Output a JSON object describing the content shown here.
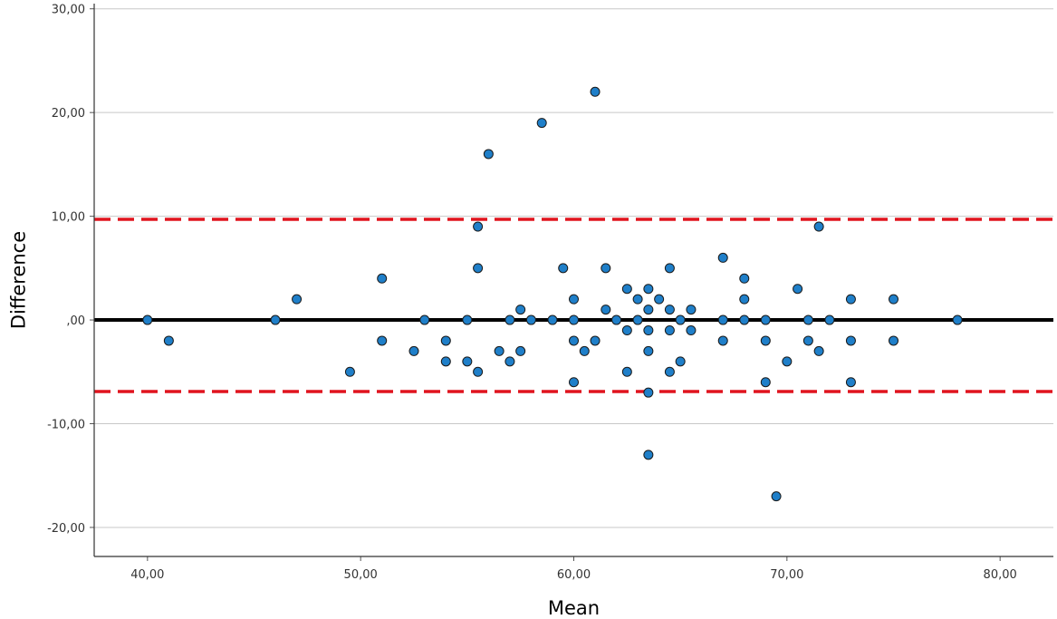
{
  "chart_data": {
    "type": "scatter",
    "title": "",
    "xlabel": "Mean",
    "ylabel": "Difference",
    "xlim": [
      37.5,
      82.5
    ],
    "ylim": [
      -22.8,
      30.5
    ],
    "grid": "horizontal",
    "x_ticks": [
      {
        "value": 40,
        "label": "40,00"
      },
      {
        "value": 50,
        "label": "50,00"
      },
      {
        "value": 60,
        "label": "60,00"
      },
      {
        "value": 70,
        "label": "70,00"
      },
      {
        "value": 80,
        "label": "80,00"
      }
    ],
    "y_ticks": [
      {
        "value": 30,
        "label": "30,00"
      },
      {
        "value": 20,
        "label": "20,00"
      },
      {
        "value": 10,
        "label": "10,00"
      },
      {
        "value": 0,
        "label": ",00"
      },
      {
        "value": -10,
        "label": "-10,00"
      },
      {
        "value": -20,
        "label": "-20,00"
      }
    ],
    "reference_lines": {
      "mean_difference": 0,
      "upper_limit": 9.7,
      "lower_limit": -6.9
    },
    "colors": {
      "points": "#1f7fc9",
      "point_edge": "#1a1a1a",
      "mean_line": "#000000",
      "limit_lines": "#e0141e",
      "grid": "#c8c8c8"
    },
    "points": [
      {
        "x": 40,
        "y": 0
      },
      {
        "x": 41,
        "y": -2
      },
      {
        "x": 46,
        "y": 0
      },
      {
        "x": 47,
        "y": 2
      },
      {
        "x": 49.5,
        "y": -5
      },
      {
        "x": 51,
        "y": 4
      },
      {
        "x": 51,
        "y": -2
      },
      {
        "x": 52.5,
        "y": -3
      },
      {
        "x": 53,
        "y": 0
      },
      {
        "x": 54,
        "y": -2
      },
      {
        "x": 54,
        "y": -4
      },
      {
        "x": 55,
        "y": 0
      },
      {
        "x": 55,
        "y": -4
      },
      {
        "x": 55.5,
        "y": 9
      },
      {
        "x": 55.5,
        "y": 5
      },
      {
        "x": 55.5,
        "y": -5
      },
      {
        "x": 56,
        "y": 16
      },
      {
        "x": 56.5,
        "y": -3
      },
      {
        "x": 57,
        "y": 0
      },
      {
        "x": 57,
        "y": -4
      },
      {
        "x": 57.5,
        "y": 1
      },
      {
        "x": 57.5,
        "y": -3
      },
      {
        "x": 58,
        "y": 0
      },
      {
        "x": 58.5,
        "y": 19
      },
      {
        "x": 59,
        "y": 0
      },
      {
        "x": 59.5,
        "y": 5
      },
      {
        "x": 60,
        "y": 2
      },
      {
        "x": 60,
        "y": 0
      },
      {
        "x": 60,
        "y": -2
      },
      {
        "x": 60,
        "y": -6
      },
      {
        "x": 60.5,
        "y": -3
      },
      {
        "x": 61,
        "y": 22
      },
      {
        "x": 61,
        "y": -2
      },
      {
        "x": 61.5,
        "y": 5
      },
      {
        "x": 61.5,
        "y": 1
      },
      {
        "x": 62,
        "y": 0
      },
      {
        "x": 62.5,
        "y": 3
      },
      {
        "x": 62.5,
        "y": -1
      },
      {
        "x": 62.5,
        "y": -5
      },
      {
        "x": 63,
        "y": 2
      },
      {
        "x": 63,
        "y": 0
      },
      {
        "x": 63.5,
        "y": 3
      },
      {
        "x": 63.5,
        "y": 1
      },
      {
        "x": 63.5,
        "y": -1
      },
      {
        "x": 63.5,
        "y": -3
      },
      {
        "x": 63.5,
        "y": -7
      },
      {
        "x": 63.5,
        "y": -13
      },
      {
        "x": 64,
        "y": 2
      },
      {
        "x": 64.5,
        "y": 5
      },
      {
        "x": 64.5,
        "y": 1
      },
      {
        "x": 64.5,
        "y": -1
      },
      {
        "x": 64.5,
        "y": -5
      },
      {
        "x": 65,
        "y": 0
      },
      {
        "x": 65,
        "y": -4
      },
      {
        "x": 65.5,
        "y": 1
      },
      {
        "x": 65.5,
        "y": -1
      },
      {
        "x": 67,
        "y": 6
      },
      {
        "x": 67,
        "y": 0
      },
      {
        "x": 67,
        "y": -2
      },
      {
        "x": 68,
        "y": 4
      },
      {
        "x": 68,
        "y": 2
      },
      {
        "x": 68,
        "y": 0
      },
      {
        "x": 69,
        "y": 0
      },
      {
        "x": 69,
        "y": -2
      },
      {
        "x": 69,
        "y": -6
      },
      {
        "x": 69.5,
        "y": -17
      },
      {
        "x": 70,
        "y": -4
      },
      {
        "x": 70.5,
        "y": 3
      },
      {
        "x": 71,
        "y": 0
      },
      {
        "x": 71,
        "y": -2
      },
      {
        "x": 71.5,
        "y": 9
      },
      {
        "x": 71.5,
        "y": -3
      },
      {
        "x": 72,
        "y": 0
      },
      {
        "x": 73,
        "y": 2
      },
      {
        "x": 73,
        "y": -2
      },
      {
        "x": 73,
        "y": -6
      },
      {
        "x": 75,
        "y": 2
      },
      {
        "x": 75,
        "y": -2
      },
      {
        "x": 78,
        "y": 0
      }
    ]
  }
}
